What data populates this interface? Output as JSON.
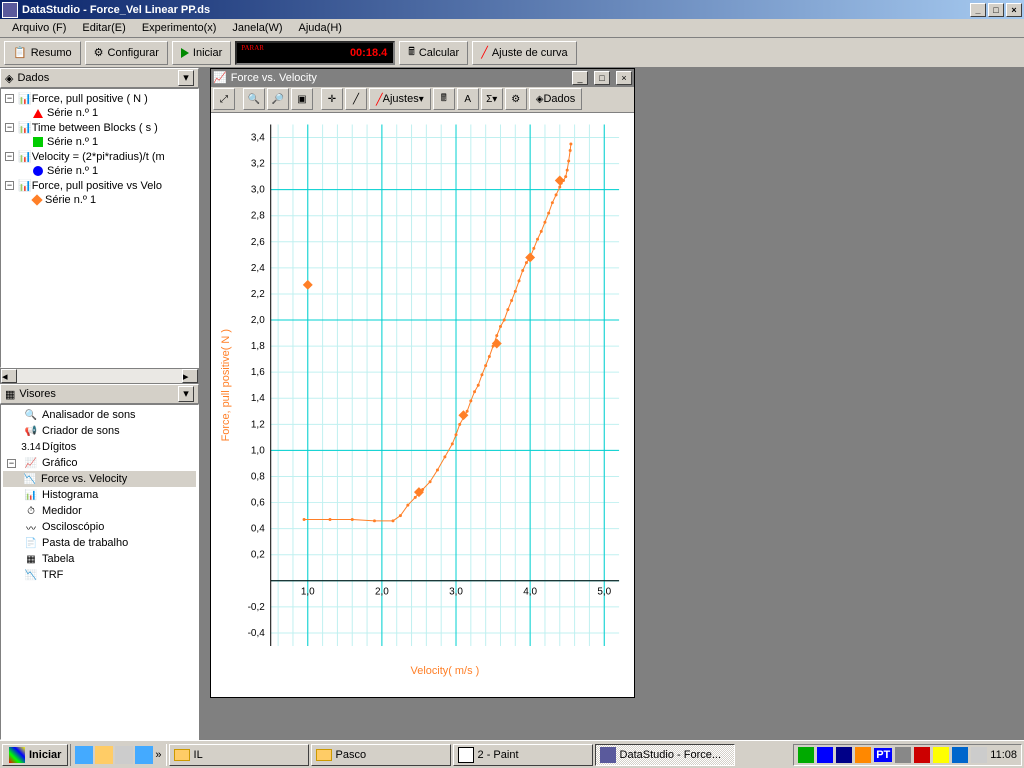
{
  "window": {
    "title": "DataStudio - Force_Vel Linear PP.ds"
  },
  "menu": {
    "arquivo": "Arquivo (F)",
    "editar": "Editar(E)",
    "experimento": "Experimento(x)",
    "janela": "Janela(W)",
    "ajuda": "Ajuda(H)"
  },
  "toolbar": {
    "resumo": "Resumo",
    "configurar": "Configurar",
    "iniciar": "Iniciar",
    "calcular": "Calcular",
    "ajuste": "Ajuste de curva",
    "timer_label": "PARAR",
    "timer_value": "00:18.4"
  },
  "dados_panel": {
    "title": "Dados",
    "items": [
      {
        "label": "Force, pull positive ( N )",
        "series": "Série n.º 1",
        "marker": "triangle-red"
      },
      {
        "label": "Time between Blocks ( s )",
        "series": "Série n.º 1",
        "marker": "square-green"
      },
      {
        "label": "Velocity = (2*pi*radius)/t (m",
        "series": "Série n.º 1",
        "marker": "circle-blue"
      },
      {
        "label": "Force, pull positive vs Velo",
        "series": "Série n.º 1",
        "marker": "diamond-orange"
      }
    ]
  },
  "visores_panel": {
    "title": "Visores",
    "items": [
      {
        "label": "Analisador de sons",
        "icon": "🔍"
      },
      {
        "label": "Criador de sons",
        "icon": "📢"
      },
      {
        "label": "Dígitos",
        "icon": "3.14"
      },
      {
        "label": "Gráfico",
        "icon": "📈",
        "expanded": true
      },
      {
        "label": "Force vs. Velocity",
        "icon": "📉",
        "child": true,
        "selected": true
      },
      {
        "label": "Histograma",
        "icon": "📊"
      },
      {
        "label": "Medidor",
        "icon": "⏱"
      },
      {
        "label": "Osciloscópio",
        "icon": "〰"
      },
      {
        "label": "Pasta de trabalho",
        "icon": "📄"
      },
      {
        "label": "Tabela",
        "icon": "▦"
      },
      {
        "label": "TRF",
        "icon": "📉"
      }
    ]
  },
  "chart_window": {
    "title": "Force vs. Velocity",
    "toolbar": {
      "ajustes": "Ajustes",
      "dados": "Dados"
    },
    "xlabel": "Velocity( m/s )",
    "ylabel": "Force, pull positive( N )",
    "xlim": [
      0.5,
      5.2
    ],
    "ylim": [
      -0.5,
      3.5
    ],
    "xtick_labels": [
      "1,0",
      "2,0",
      "3,0",
      "4,0",
      "5,0"
    ],
    "xtick_values": [
      1.0,
      2.0,
      3.0,
      4.0,
      5.0
    ],
    "ytick_labels": [
      "-0,4",
      "-0,2",
      "0,2",
      "0,4",
      "0,6",
      "0,8",
      "1,0",
      "1,2",
      "1,4",
      "1,6",
      "1,8",
      "2,0",
      "2,2",
      "2,4",
      "2,6",
      "2,8",
      "3,0",
      "3,2",
      "3,4"
    ],
    "ytick_values": [
      -0.4,
      -0.2,
      0.2,
      0.4,
      0.6,
      0.8,
      1.0,
      1.2,
      1.4,
      1.6,
      1.8,
      2.0,
      2.2,
      2.4,
      2.6,
      2.8,
      3.0,
      3.2,
      3.4
    ],
    "series_color": "#ff7f27",
    "grid_major_color": "#00d0d0",
    "grid_minor_color": "#c0f0f0",
    "line_points": [
      [
        0.95,
        0.47
      ],
      [
        1.3,
        0.47
      ],
      [
        1.6,
        0.47
      ],
      [
        1.9,
        0.46
      ],
      [
        2.15,
        0.46
      ],
      [
        2.25,
        0.5
      ],
      [
        2.35,
        0.58
      ],
      [
        2.45,
        0.64
      ],
      [
        2.55,
        0.7
      ],
      [
        2.65,
        0.76
      ],
      [
        2.75,
        0.85
      ],
      [
        2.85,
        0.95
      ],
      [
        2.95,
        1.05
      ],
      [
        3.0,
        1.12
      ],
      [
        3.05,
        1.2
      ],
      [
        3.1,
        1.25
      ],
      [
        3.15,
        1.3
      ],
      [
        3.2,
        1.38
      ],
      [
        3.25,
        1.45
      ],
      [
        3.3,
        1.5
      ],
      [
        3.35,
        1.58
      ],
      [
        3.4,
        1.65
      ],
      [
        3.45,
        1.72
      ],
      [
        3.5,
        1.8
      ],
      [
        3.55,
        1.88
      ],
      [
        3.6,
        1.95
      ],
      [
        3.65,
        2.0
      ],
      [
        3.7,
        2.08
      ],
      [
        3.75,
        2.15
      ],
      [
        3.8,
        2.22
      ],
      [
        3.85,
        2.3
      ],
      [
        3.9,
        2.38
      ],
      [
        3.95,
        2.44
      ],
      [
        4.0,
        2.48
      ],
      [
        4.05,
        2.55
      ],
      [
        4.1,
        2.62
      ],
      [
        4.15,
        2.68
      ],
      [
        4.2,
        2.75
      ],
      [
        4.25,
        2.82
      ],
      [
        4.3,
        2.9
      ],
      [
        4.35,
        2.96
      ],
      [
        4.4,
        3.02
      ],
      [
        4.42,
        3.05
      ],
      [
        4.45,
        3.07
      ],
      [
        4.48,
        3.1
      ],
      [
        4.5,
        3.15
      ],
      [
        4.52,
        3.22
      ],
      [
        4.54,
        3.3
      ],
      [
        4.55,
        3.35
      ]
    ],
    "diamonds": [
      [
        1.0,
        2.27
      ],
      [
        2.5,
        0.68
      ],
      [
        3.1,
        1.27
      ],
      [
        3.55,
        1.82
      ],
      [
        4.0,
        2.48
      ],
      [
        4.4,
        3.07
      ]
    ]
  },
  "taskbar": {
    "start": "Iniciar",
    "tasks": [
      {
        "label": "IL",
        "icon": "folder"
      },
      {
        "label": "Pasco",
        "icon": "folder"
      },
      {
        "label": "2 - Paint",
        "icon": "paint"
      },
      {
        "label": "DataStudio - Force...",
        "icon": "ds",
        "active": true
      }
    ],
    "clock": "11:08",
    "lang": "PT"
  }
}
